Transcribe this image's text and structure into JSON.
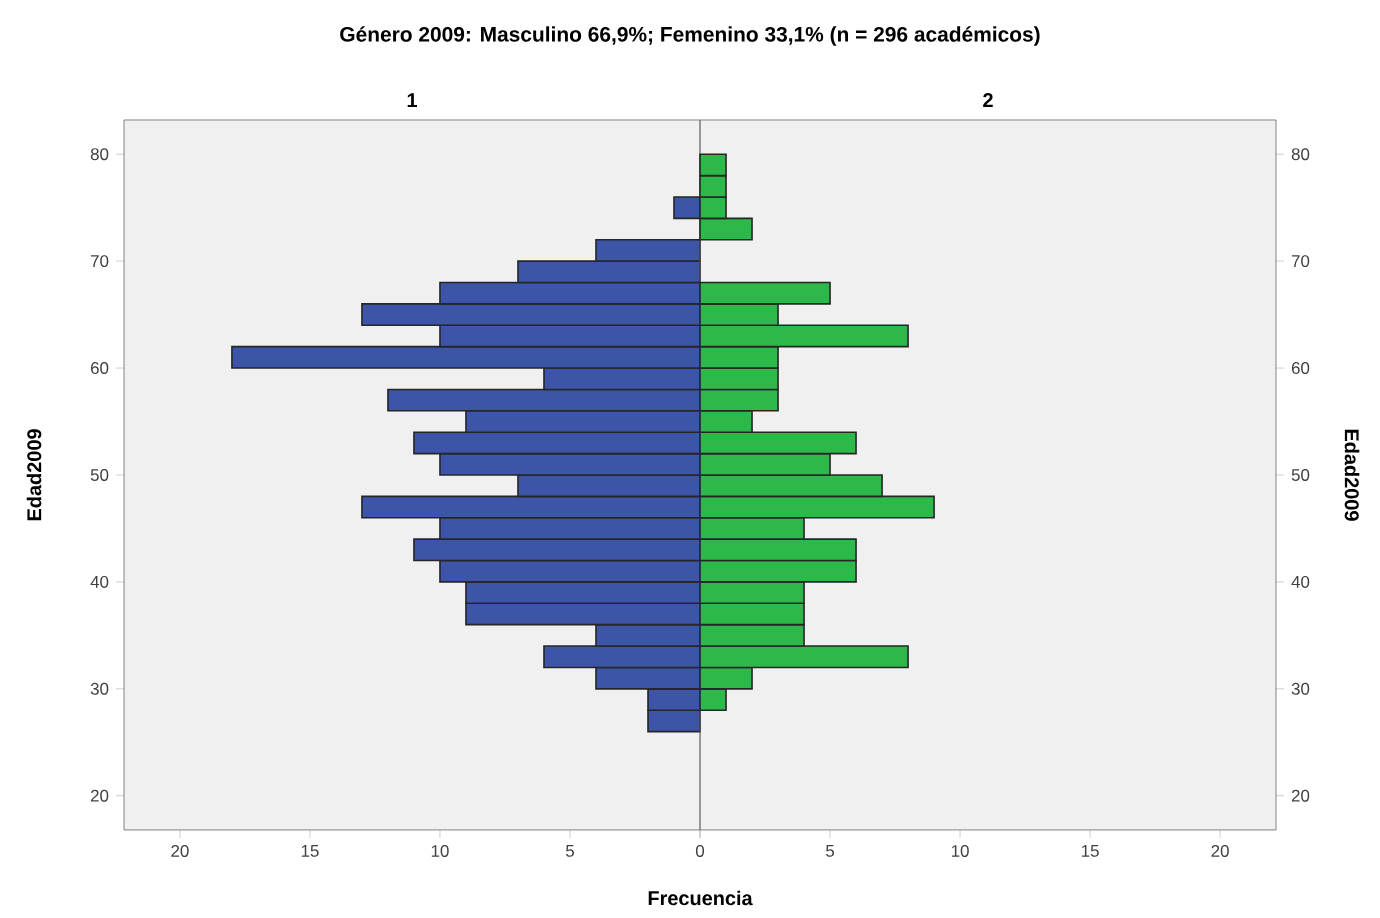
{
  "chart_data": [
    {
      "type": "histogram",
      "orientation": "horizontal",
      "title": "Género 2009: Masculino 66,9%; Femenino 33,1% (n = 296 académicos)",
      "subtitle": "1",
      "xlabel": "Frecuencia",
      "ylabel": "Edad2009",
      "color": "#3c55a8",
      "bins": [
        26,
        28,
        30,
        32,
        34,
        36,
        38,
        40,
        42,
        44,
        46,
        48,
        50,
        52,
        54,
        56,
        58,
        60,
        62,
        64,
        66,
        68,
        70,
        72,
        74,
        76,
        78,
        80
      ],
      "values": [
        2,
        2,
        4,
        6,
        4,
        9,
        9,
        10,
        11,
        10,
        13,
        7,
        10,
        11,
        9,
        12,
        6,
        18,
        10,
        13,
        10,
        7,
        4,
        0,
        1,
        0,
        0
      ],
      "xlim": [
        22.15,
        0
      ],
      "xticks": [
        20,
        15,
        10,
        5,
        0
      ],
      "ylim": [
        16.8,
        83.2
      ],
      "yticks": [
        20,
        30,
        40,
        50,
        60,
        70,
        80
      ]
    },
    {
      "type": "histogram",
      "orientation": "horizontal",
      "subtitle": "2",
      "ylabel": "Edad2009",
      "color": "#2db84a",
      "bins": [
        26,
        28,
        30,
        32,
        34,
        36,
        38,
        40,
        42,
        44,
        46,
        48,
        50,
        52,
        54,
        56,
        58,
        60,
        62,
        64,
        66,
        68,
        70,
        72,
        74,
        76,
        78,
        80
      ],
      "values": [
        0,
        1,
        2,
        8,
        4,
        4,
        4,
        6,
        6,
        4,
        9,
        7,
        5,
        6,
        2,
        3,
        3,
        3,
        8,
        3,
        5,
        0,
        0,
        2,
        1,
        1,
        1
      ],
      "xlim": [
        0,
        22.15
      ],
      "xticks": [
        {
          "value": 0,
          "label": null
        },
        5,
        10,
        15,
        20
      ],
      "ylim": [
        16.8,
        83.2
      ],
      "yticks": [
        20,
        30,
        40,
        50,
        60,
        70,
        80
      ]
    }
  ]
}
